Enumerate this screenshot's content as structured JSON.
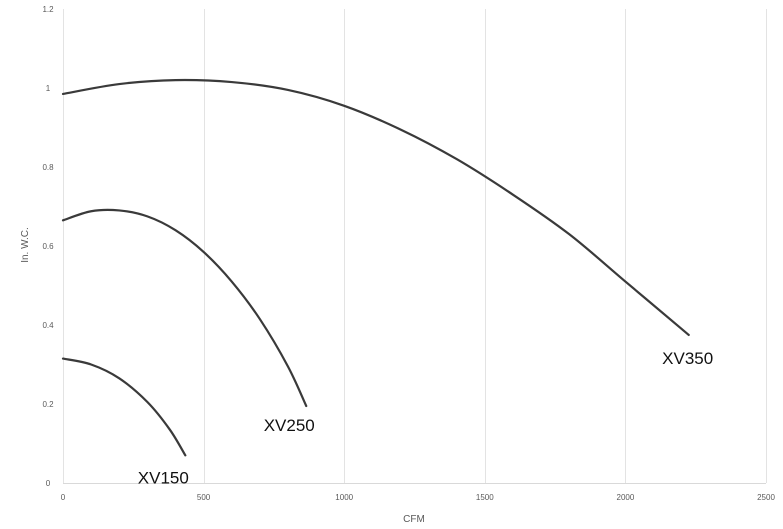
{
  "chart_data": {
    "type": "line",
    "title": "",
    "xlabel": "CFM",
    "ylabel": "In. W.C.",
    "xlim": [
      0,
      2500
    ],
    "ylim": [
      0,
      1.2
    ],
    "x_ticks": [
      0,
      500,
      1000,
      1500,
      2000,
      2500
    ],
    "y_ticks": [
      0,
      0.2,
      0.4,
      0.6,
      0.8,
      1,
      1.2
    ],
    "grid": "vertical",
    "legend": "none",
    "line_color": "#3a3a3a",
    "grid_color": "#e3e3e3",
    "series": [
      {
        "name": "XV350",
        "points": [
          [
            0,
            0.985
          ],
          [
            200,
            1.01
          ],
          [
            400,
            1.02
          ],
          [
            600,
            1.015
          ],
          [
            800,
            0.995
          ],
          [
            1000,
            0.955
          ],
          [
            1200,
            0.895
          ],
          [
            1400,
            0.82
          ],
          [
            1600,
            0.73
          ],
          [
            1800,
            0.63
          ],
          [
            2000,
            0.51
          ],
          [
            2200,
            0.39
          ],
          [
            2225,
            0.375
          ]
        ]
      },
      {
        "name": "XV250",
        "points": [
          [
            0,
            0.665
          ],
          [
            100,
            0.688
          ],
          [
            200,
            0.69
          ],
          [
            300,
            0.675
          ],
          [
            400,
            0.64
          ],
          [
            500,
            0.585
          ],
          [
            600,
            0.51
          ],
          [
            700,
            0.415
          ],
          [
            800,
            0.295
          ],
          [
            865,
            0.195
          ]
        ]
      },
      {
        "name": "XV150",
        "points": [
          [
            0,
            0.315
          ],
          [
            100,
            0.3
          ],
          [
            200,
            0.265
          ],
          [
            300,
            0.205
          ],
          [
            380,
            0.135
          ],
          [
            435,
            0.07
          ]
        ]
      }
    ]
  }
}
